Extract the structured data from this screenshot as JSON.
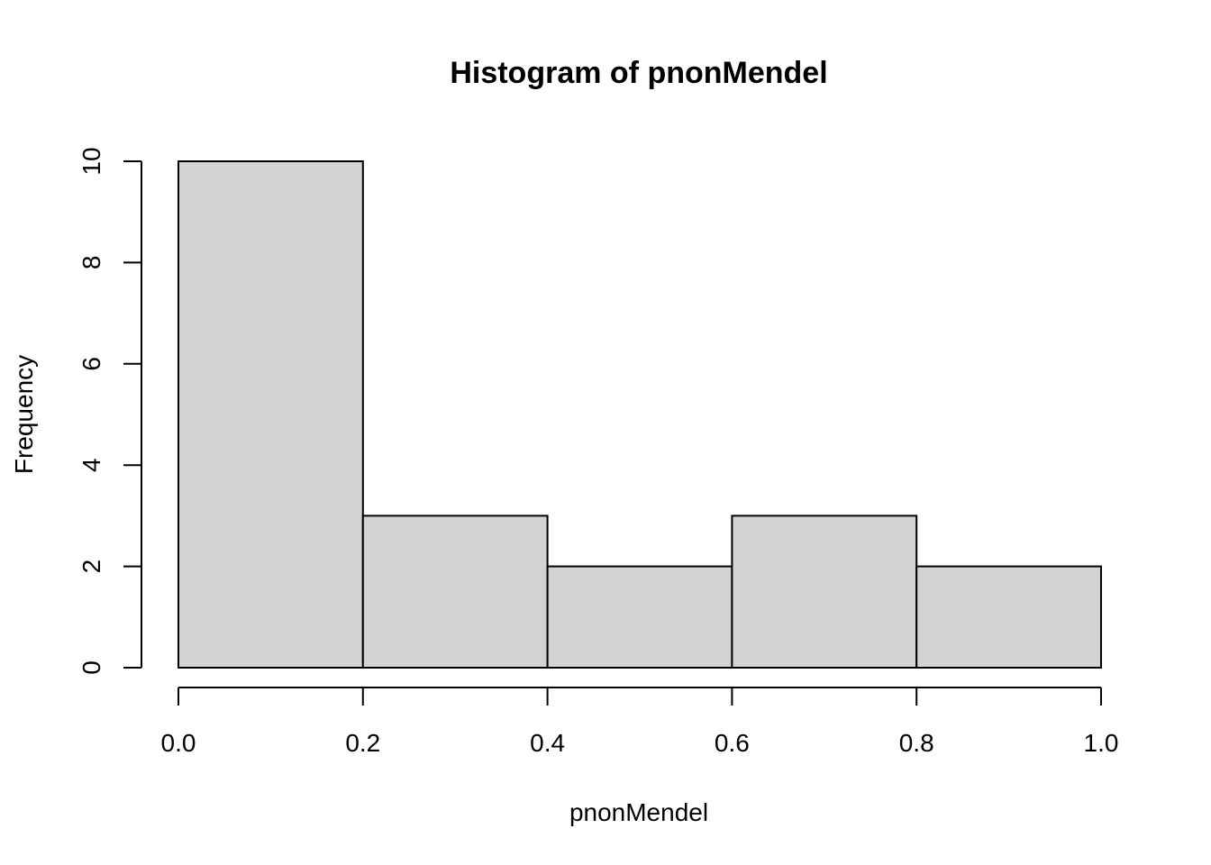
{
  "chart_data": {
    "type": "bar",
    "title": "Histogram of pnonMendel",
    "xlabel": "pnonMendel",
    "ylabel": "Frequency",
    "bins": [
      {
        "from": 0.0,
        "to": 0.2,
        "count": 10
      },
      {
        "from": 0.2,
        "to": 0.4,
        "count": 3
      },
      {
        "from": 0.4,
        "to": 0.6,
        "count": 2
      },
      {
        "from": 0.6,
        "to": 0.8,
        "count": 3
      },
      {
        "from": 0.8,
        "to": 1.0,
        "count": 2
      }
    ],
    "xlim": [
      0,
      1
    ],
    "ylim": [
      0,
      10
    ],
    "x_ticks": [
      "0.0",
      "0.2",
      "0.4",
      "0.6",
      "0.8",
      "1.0"
    ],
    "y_ticks": [
      "0",
      "2",
      "4",
      "6",
      "8",
      "10"
    ],
    "grid": false,
    "bar_color": "#d3d3d3",
    "edge_color": "#000000"
  }
}
